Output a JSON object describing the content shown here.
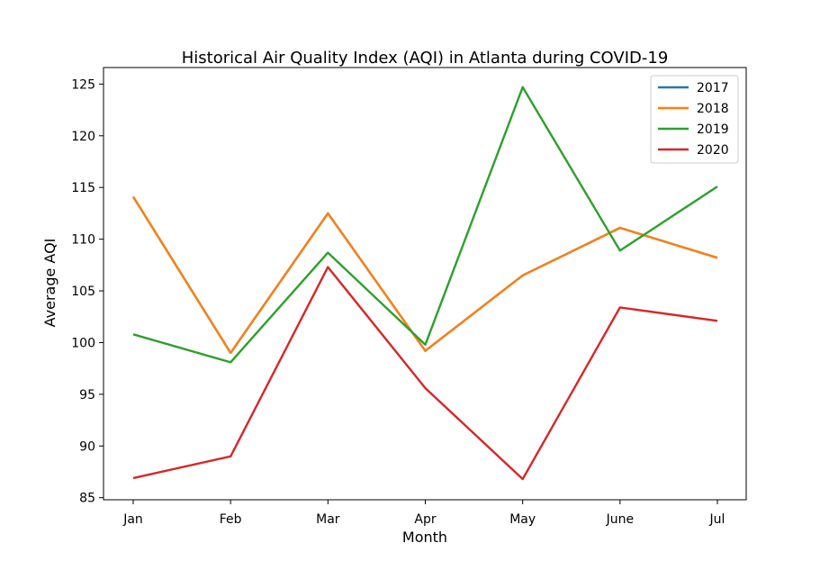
{
  "chart_data": {
    "type": "line",
    "title": "Historical Air Quality Index (AQI) in Atlanta during COVID-19",
    "xlabel": "Month",
    "ylabel": "Average AQI",
    "categories": [
      "Jan",
      "Feb",
      "Mar",
      "Apr",
      "May",
      "June",
      "Jul"
    ],
    "ylim": [
      84.8,
      126.6
    ],
    "yticks": [
      85,
      90,
      95,
      100,
      105,
      110,
      115,
      120,
      125
    ],
    "grid": false,
    "legend_position": "top-right",
    "series": [
      {
        "name": "2017",
        "color": "#1f77b4",
        "values": [
          114.1,
          99.0,
          112.5,
          99.2,
          106.5,
          111.1,
          108.2
        ]
      },
      {
        "name": "2018",
        "color": "#ff7f0e",
        "values": [
          114.1,
          99.0,
          112.5,
          99.2,
          106.5,
          111.1,
          108.2
        ]
      },
      {
        "name": "2019",
        "color": "#2ca02c",
        "values": [
          100.8,
          98.1,
          108.7,
          99.8,
          124.7,
          108.9,
          115.1
        ]
      },
      {
        "name": "2020",
        "color": "#d62728",
        "values": [
          86.9,
          89.0,
          107.3,
          95.6,
          86.8,
          103.4,
          102.1
        ]
      }
    ]
  }
}
